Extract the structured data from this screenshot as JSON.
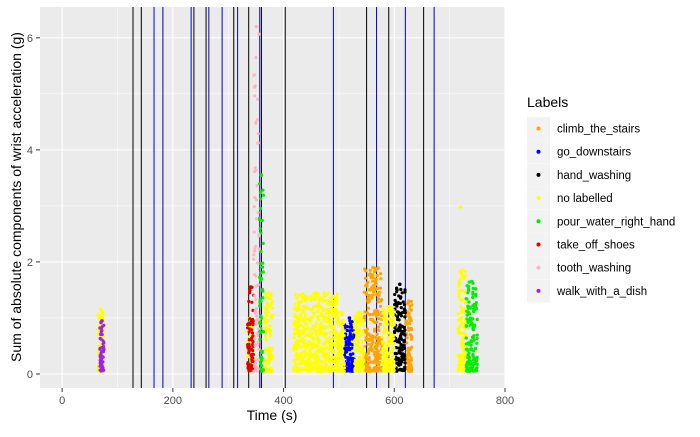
{
  "chart_data": {
    "type": "scatter",
    "xlabel": "Time (s)",
    "ylabel": "Sum of absolute components of wrist acceleration (g)",
    "xlim": [
      -40,
      800
    ],
    "ylim": [
      -0.25,
      6.55
    ],
    "x_ticks": [
      0,
      200,
      400,
      600,
      800
    ],
    "y_ticks": [
      0,
      2,
      4,
      6
    ],
    "grid": true,
    "legend_position": "right",
    "legend_title": "Labels",
    "series": [
      {
        "name": "climb_the_stairs",
        "color": "#FFA500",
        "clusters": [
          {
            "x": [
              545,
              578
            ],
            "y_range": [
              0.05,
              1.9
            ]
          },
          {
            "x": [
              620,
              632
            ],
            "y_range": [
              0.05,
              1.3
            ]
          }
        ]
      },
      {
        "name": "go_downstairs",
        "color": "#0000FF",
        "clusters": [
          {
            "x": [
              510,
              528
            ],
            "y_range": [
              0.05,
              1.0
            ]
          }
        ]
      },
      {
        "name": "hand_washing",
        "color": "#000000",
        "clusters": [
          {
            "x": [
              600,
              620
            ],
            "y_range": [
              0.05,
              1.6
            ]
          }
        ]
      },
      {
        "name": "no labelled",
        "color": "#FFFF00",
        "clusters": [
          {
            "x": [
              65,
              75
            ],
            "y_range": [
              0.05,
              1.15
            ]
          },
          {
            "x": [
              335,
              345
            ],
            "y_range": [
              0.05,
              1.0
            ]
          },
          {
            "x": [
              365,
              380
            ],
            "y_range": [
              0.05,
              1.45
            ]
          },
          {
            "x": [
              418,
              500
            ],
            "y_range": [
              0.05,
              1.45
            ]
          },
          {
            "x": [
              500,
              510
            ],
            "y_range": [
              0.05,
              1.1
            ]
          },
          {
            "x": [
              528,
              545
            ],
            "y_range": [
              0.05,
              1.1
            ]
          },
          {
            "x": [
              578,
              600
            ],
            "y_range": [
              0.05,
              1.2
            ]
          },
          {
            "x": [
              715,
              730
            ],
            "y_range": [
              0.05,
              1.85
            ]
          }
        ],
        "points": [
          [
            720,
            2.98
          ]
        ]
      },
      {
        "name": "pour_water_right_hand",
        "color": "#00EE00",
        "clusters": [
          {
            "x": [
              356,
              364
            ],
            "y_range": [
              0.05,
              3.55
            ]
          },
          {
            "x": [
              730,
              750
            ],
            "y_range": [
              0.05,
              1.65
            ]
          }
        ]
      },
      {
        "name": "take_off_shoes",
        "color": "#DD0000",
        "clusters": [
          {
            "x": [
              335,
              346
            ],
            "y_range": [
              0.05,
              1.55
            ]
          }
        ]
      },
      {
        "name": "tooth_washing",
        "color": "#FFB6C1",
        "clusters": [
          {
            "x": [
              346,
              356
            ],
            "y_range": [
              0.05,
              6.2
            ]
          }
        ]
      },
      {
        "name": "walk_with_a_dish",
        "color": "#A020F0",
        "clusters": [
          {
            "x": [
              68,
              76
            ],
            "y_range": [
              0.05,
              0.95
            ]
          }
        ]
      }
    ],
    "vlines": [
      {
        "x": 128,
        "color": "#000000"
      },
      {
        "x": 143,
        "color": "#000000"
      },
      {
        "x": 166,
        "color": "#0000CD"
      },
      {
        "x": 182,
        "color": "#0000CD"
      },
      {
        "x": 233,
        "color": "#0000CD"
      },
      {
        "x": 238,
        "color": "#000000"
      },
      {
        "x": 260,
        "color": "#000000"
      },
      {
        "x": 265,
        "color": "#0000CD"
      },
      {
        "x": 289,
        "color": "#0000CD"
      },
      {
        "x": 310,
        "color": "#000000"
      },
      {
        "x": 317,
        "color": "#0000CD"
      },
      {
        "x": 337,
        "color": "#000000"
      },
      {
        "x": 357,
        "color": "#0000CD"
      },
      {
        "x": 360,
        "color": "#000000"
      },
      {
        "x": 403,
        "color": "#000000"
      },
      {
        "x": 490,
        "color": "#0000CD"
      },
      {
        "x": 550,
        "color": "#000000"
      },
      {
        "x": 568,
        "color": "#0000CD"
      },
      {
        "x": 590,
        "color": "#000000"
      },
      {
        "x": 620,
        "color": "#0000CD"
      },
      {
        "x": 653,
        "color": "#000000"
      },
      {
        "x": 672,
        "color": "#0000CD"
      }
    ]
  }
}
